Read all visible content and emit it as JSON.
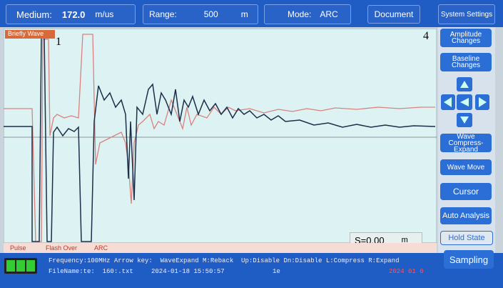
{
  "header": {
    "medium_label": "Medium:",
    "medium_value": "172.0",
    "medium_unit": "m/us",
    "range_label": "Range:",
    "range_value": "500",
    "range_unit": "m",
    "mode_label": "Mode:",
    "mode_value": "ARC",
    "document": "Document",
    "system_settings": "System Settings"
  },
  "plot": {
    "wave_tag": "Briefly Wave",
    "cursor_left": "1",
    "cursor_right": "4",
    "distance": "S=0.00",
    "distance_unit": "m",
    "tabs": [
      "Pulse",
      "Flash Over",
      "ARC"
    ]
  },
  "side_buttons": [
    "Amplitude Changes",
    "Baseline Changes",
    "Wave Compress-Expand",
    "Wave Move",
    "Cursor",
    "Auto Analysis",
    "Hold State",
    "Sampling"
  ],
  "status": {
    "line1": "Frequency:100MHz Arrow key:  WaveExpand M:Reback  Up:Disable Dn:Disable L:Compress R:Expand",
    "file": "FileName:te:  160:.txt",
    "datetime": "2024-01-18 15:50:57",
    "code": "1e",
    "date_right": "2024 01 0"
  }
}
